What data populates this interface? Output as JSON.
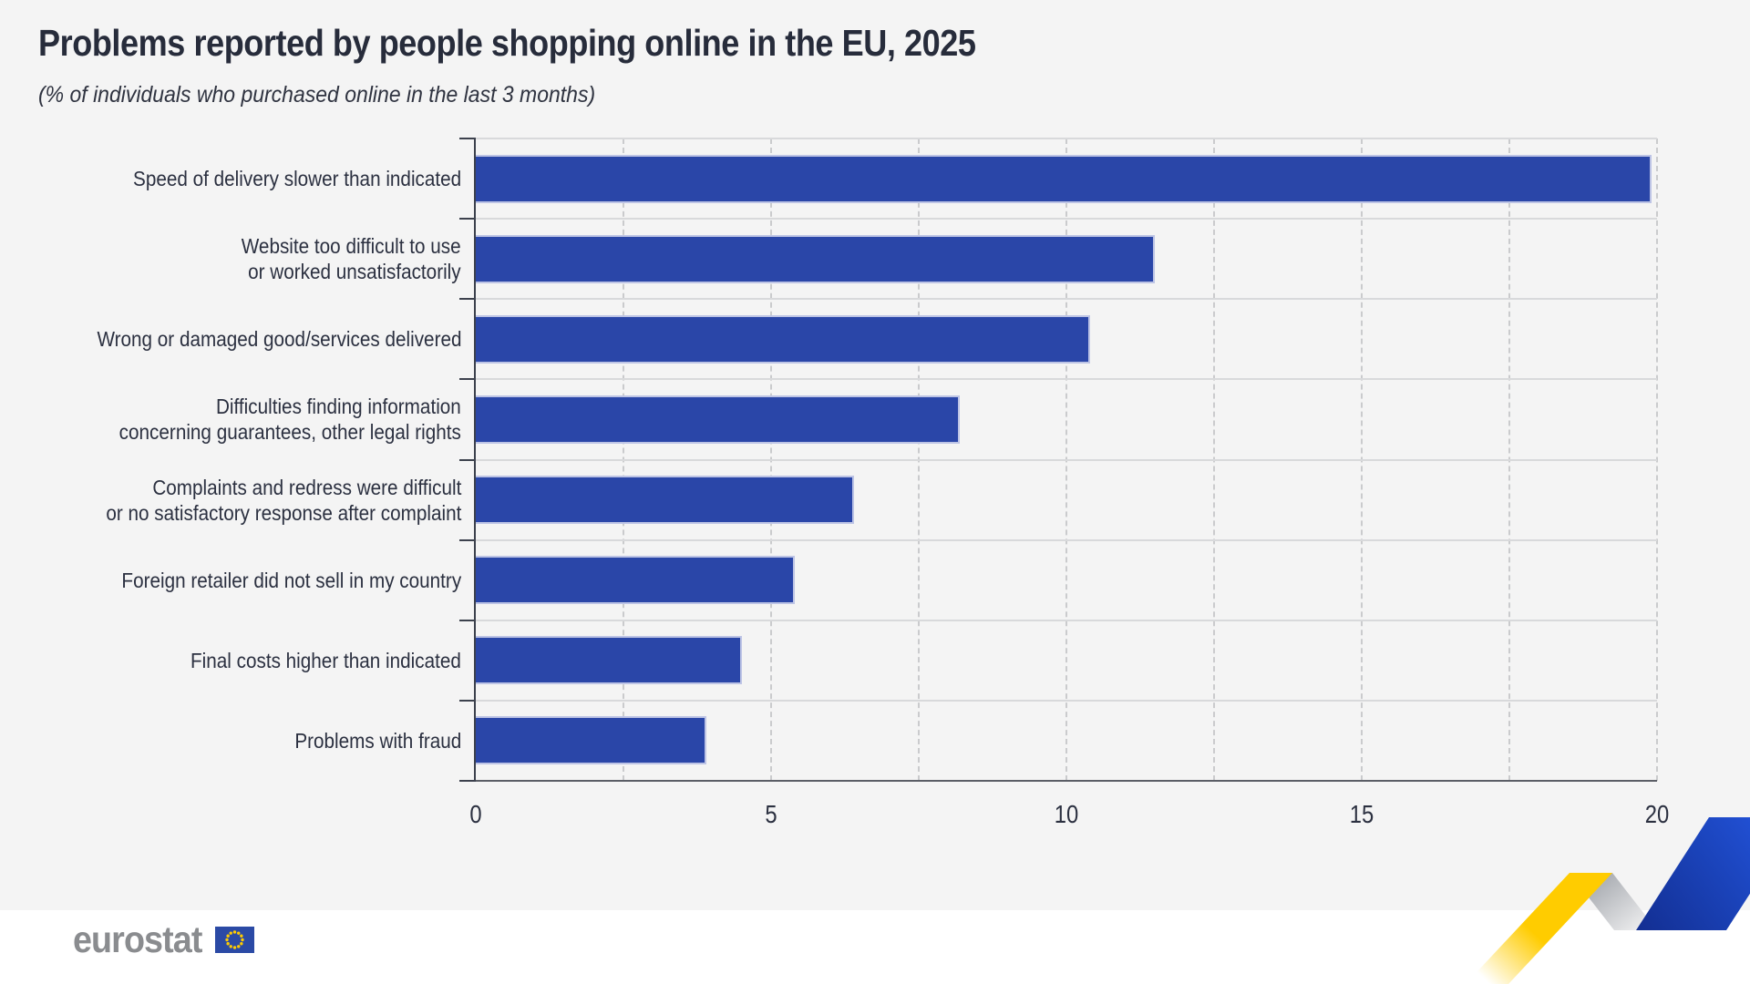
{
  "title": "Problems reported by people shopping online in the EU, 2025",
  "subtitle": "(% of individuals who purchased online in the last 3 months)",
  "chart_data": {
    "type": "bar",
    "orientation": "horizontal",
    "categories": [
      "Speed of delivery slower than indicated",
      "Website too difficult to use\nor worked unsatisfactorily",
      "Wrong or damaged good/services delivered",
      "Difficulties finding information\nconcerning guarantees, other legal rights",
      "Complaints and redress were difficult\nor no satisfactory response after complaint",
      "Foreign retailer did not sell in my country",
      "Final costs higher than indicated",
      "Problems with fraud"
    ],
    "values": [
      19.9,
      11.5,
      10.4,
      8.2,
      6.4,
      5.4,
      4.5,
      3.9
    ],
    "xlabel": "",
    "ylabel": "",
    "xlim": [
      0,
      20
    ],
    "xticks": [
      0,
      5,
      10,
      15,
      20
    ],
    "minor_grid_step": 2.5,
    "grid": "vertical dashed minor gridlines, horizontal solid row separators",
    "legend": "none",
    "unit": "%"
  },
  "footer": {
    "logo_text": "eurostat",
    "flag_icon": "eu-flag"
  },
  "colors": {
    "bar_fill": "#2A46A8",
    "bar_border": "#BDC4E5",
    "card_background": "#F4F4F4",
    "footer_background": "#FFFFFF",
    "text_dark": "#2B3040",
    "grid_dash": "#C6C7C9",
    "row_separator": "#D8D9DB",
    "axis": "#3C414D",
    "logo_gray": "#8A8C8F",
    "flag_blue": "#2B4AA5",
    "star_yellow": "#FFCC00",
    "ribbon_yellow": "#FFCC00",
    "ribbon_blue_dark": "#132F93",
    "ribbon_blue_bright": "#2455DE",
    "ribbon_gray": "#9FA3A9"
  }
}
